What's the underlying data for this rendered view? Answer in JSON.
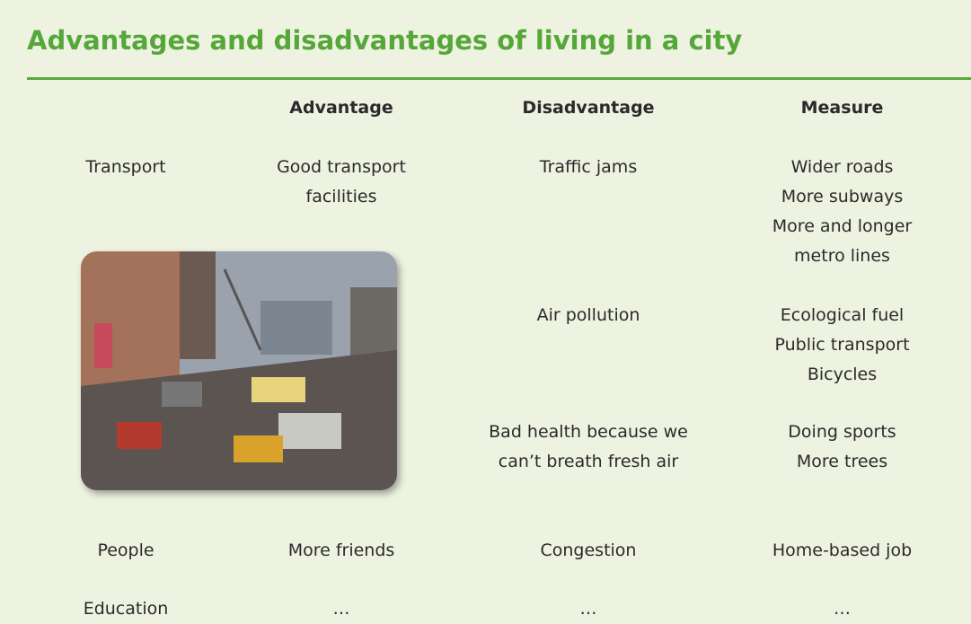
{
  "header": {
    "title": "Advantages and disadvantages of living in a city"
  },
  "table": {
    "columns": [
      "Advantage",
      "Disadvantage",
      "Measure"
    ],
    "rows": [
      {
        "label": "Transport",
        "advantage": "Good transport facilities",
        "disadvantage": "Traffic jams",
        "measures": [
          "Wider roads",
          "More subways",
          "More and longer metro lines"
        ]
      },
      {
        "disadvantage": "Air pollution",
        "measures": [
          "Ecological fuel",
          "Public transport",
          "Bicycles"
        ]
      },
      {
        "disadvantage": "Bad health because we can’t breath fresh air",
        "measures": [
          "Doing sports",
          "More trees"
        ]
      },
      {
        "label": "People",
        "advantage": "More friends",
        "disadvantage": "Congestion",
        "measures": [
          "Home-based job"
        ]
      },
      {
        "label": "Education",
        "advantage": "…",
        "disadvantage": "…",
        "measures": [
          "…"
        ]
      }
    ]
  }
}
